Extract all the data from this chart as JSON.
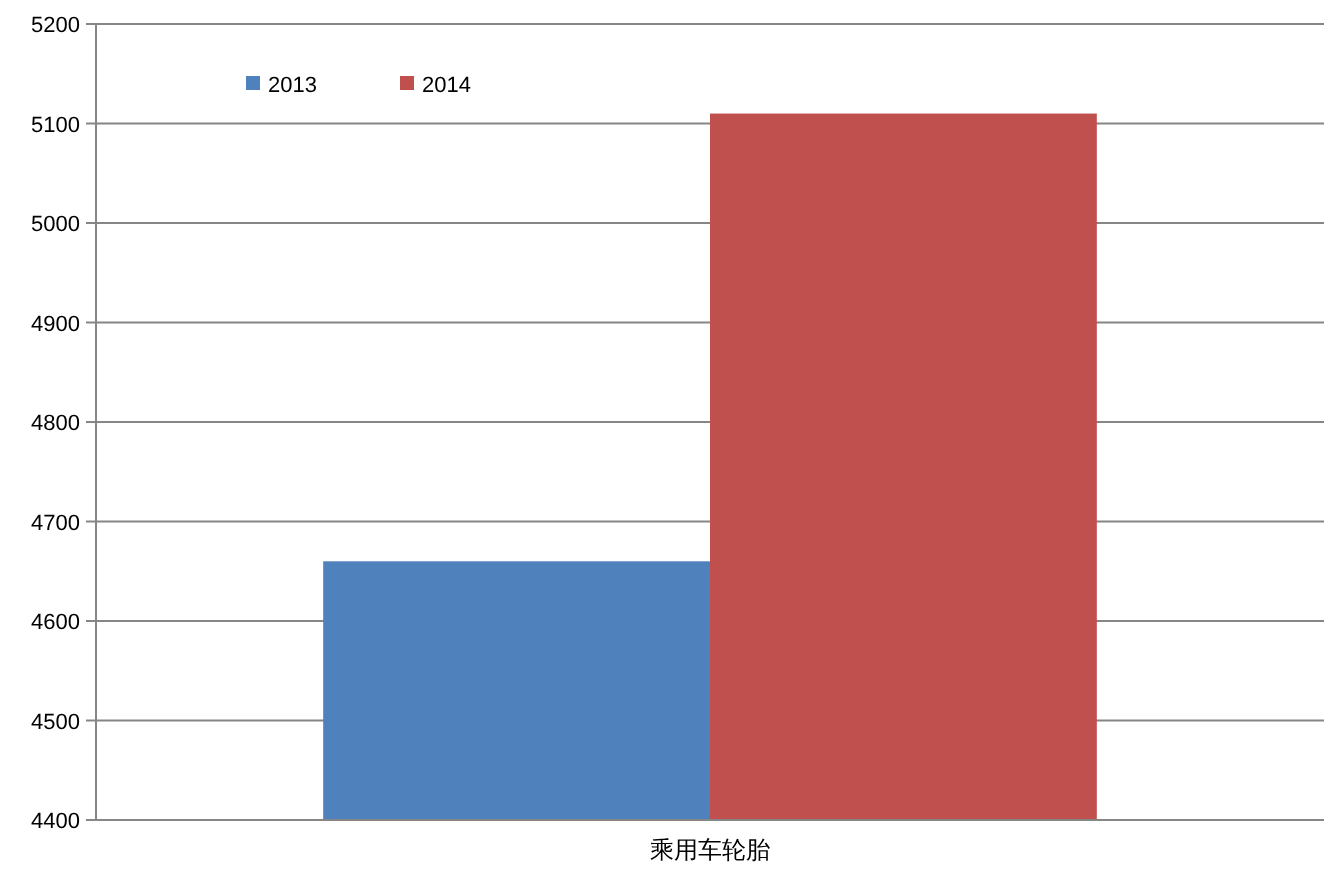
{
  "chart_data": {
    "type": "bar",
    "categories": [
      "乘用车轮胎"
    ],
    "series": [
      {
        "name": "2013",
        "color": "#4f81bd",
        "values": [
          4660
        ]
      },
      {
        "name": "2014",
        "color": "#c0504d",
        "values": [
          5110
        ]
      }
    ],
    "ylim": [
      4400,
      5200
    ],
    "yticks": [
      4400,
      4500,
      4600,
      4700,
      4800,
      4900,
      5000,
      5100,
      5200
    ],
    "grid": "y",
    "legend": "top left"
  }
}
